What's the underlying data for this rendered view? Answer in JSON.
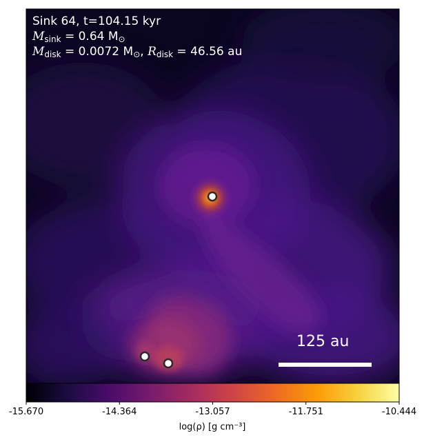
{
  "annotation": {
    "title": "Sink 64, t=104.15 kyr",
    "m_sink_label": "M",
    "m_sink_sub": "sink",
    "m_sink_value": " = 0.64 M",
    "m_sink_unit_sub": "⊙",
    "m_disk_label": "M",
    "m_disk_sub": "disk",
    "m_disk_value": " = 0.0072 M",
    "m_disk_unit_sub": "⊙",
    "r_disk_sep": ", ",
    "r_disk_label": "R",
    "r_disk_sub": "disk",
    "r_disk_value": " = 46.56 au"
  },
  "scale_bar": {
    "label": "125 au"
  },
  "colorbar": {
    "label": "log(ρ) [g cm⁻³]",
    "ticks": [
      "-15.670",
      "-14.364",
      "-13.057",
      "-11.751",
      "-10.444"
    ],
    "vmin": -15.67,
    "vmax": -10.444,
    "colormap": "plasma-like (black → purple → orange → yellow)",
    "stops": [
      "#000004",
      "#1b0c41",
      "#4a0c6b",
      "#781c6d",
      "#a52c60",
      "#cf4446",
      "#ed6925",
      "#fb9b06",
      "#f7d13d",
      "#fcffa4"
    ]
  },
  "colors": {
    "background_dark": "#0a0518",
    "sink_marker_fill": "#ffffff",
    "sink_marker_edge": "#2a2a2a",
    "text": "#ffffff"
  },
  "sinks": [
    {
      "name": "central-sink"
    },
    {
      "name": "sink-lower-left"
    },
    {
      "name": "sink-lower-right"
    }
  ]
}
